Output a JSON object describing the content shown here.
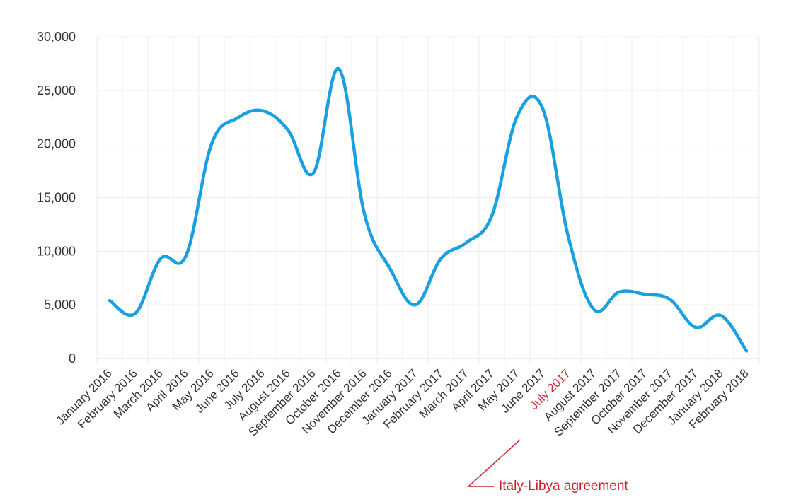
{
  "chart_data": {
    "type": "line",
    "title": "",
    "xlabel": "",
    "ylabel": "",
    "ylim": [
      0,
      30000
    ],
    "yticks": [
      "0",
      "5,000",
      "10,000",
      "15,000",
      "20,000",
      "25,000",
      "30,000"
    ],
    "ytick_values": [
      0,
      5000,
      10000,
      15000,
      20000,
      25000,
      30000
    ],
    "grid": true,
    "smooth": true,
    "categories": [
      "January 2016",
      "February 2016",
      "March 2016",
      "April 2016",
      "May 2016",
      "June 2016",
      "July 2016",
      "August 2016",
      "September 2016",
      "October 2016",
      "November 2016",
      "December 2016",
      "January 2017",
      "February 2017",
      "March 2017",
      "April 2017",
      "May 2017",
      "June 2017",
      "July 2017",
      "August 2017",
      "September 2017",
      "October 2017",
      "November 2017",
      "December 2017",
      "January 2018",
      "February 2018"
    ],
    "series": [
      {
        "values": [
          5400,
          4200,
          9300,
          9600,
          20000,
          22400,
          23100,
          21300,
          17300,
          27000,
          13500,
          8400,
          5000,
          9300,
          10800,
          13300,
          22600,
          23300,
          11400,
          4600,
          6200,
          6000,
          5500,
          2900,
          4000,
          700
        ],
        "color": "#1a9fe0"
      }
    ],
    "highlight_category": "July 2017",
    "highlight_color": "#c8202f",
    "annotation": {
      "text": "Italy-Libya agreement",
      "target": "July 2017"
    }
  }
}
